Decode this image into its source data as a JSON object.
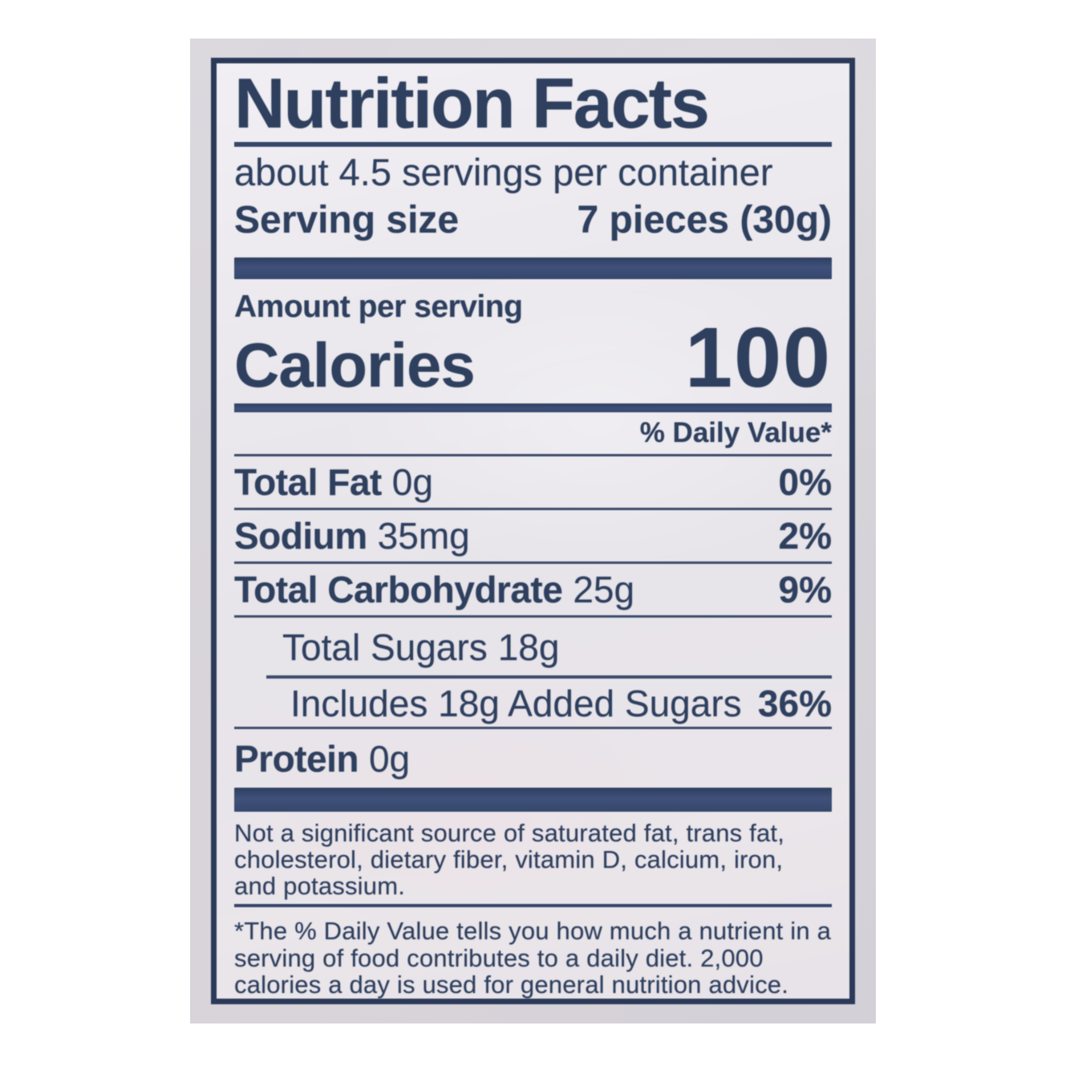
{
  "label": {
    "title": "Nutrition Facts",
    "servings_per_container": "about 4.5 servings per container",
    "serving_size_label": "Serving size",
    "serving_size_value": "7 pieces (30g)",
    "amount_per_serving": "Amount per serving",
    "calories_label": "Calories",
    "calories_value": "100",
    "daily_value_header": "% Daily Value*",
    "nutrients": [
      {
        "name": "Total Fat",
        "amount": "0g",
        "dv": "0%"
      },
      {
        "name": "Sodium",
        "amount": "35mg",
        "dv": "2%"
      },
      {
        "name": "Total Carbohydrate",
        "amount": "25g",
        "dv": "9%"
      },
      {
        "name": "Total Sugars",
        "amount": "18g",
        "dv": ""
      },
      {
        "name": "Includes 18g Added Sugars",
        "amount": "",
        "dv": "36%"
      },
      {
        "name": "Protein",
        "amount": "0g",
        "dv": ""
      }
    ],
    "not_significant_note": "Not a significant source of saturated fat, trans fat, cholesterol, dietary fiber, vitamin D, calcium, iron, and potassium.",
    "footnote": "*The % Daily Value tells you how much a nutrient in a serving of food contributes to a daily diet. 2,000 calories a day is used for general nutrition advice."
  },
  "colors": {
    "text_navy": "#2f405f",
    "bar_navy": "#35476c",
    "border_navy": "#2c3a59",
    "label_background": "#e9e6ec",
    "package_background": "#d7d4da",
    "page_background": "#ffffff"
  }
}
